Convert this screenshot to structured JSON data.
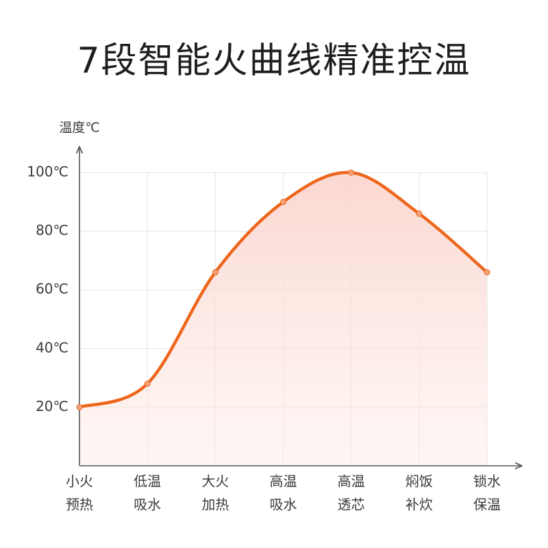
{
  "chart_data": {
    "type": "line",
    "title": "7段智能火曲线精准控温",
    "y_label": "温度℃",
    "categories": [
      [
        "小火",
        "预热"
      ],
      [
        "低温",
        "吸水"
      ],
      [
        "大火",
        "加热"
      ],
      [
        "高温",
        "吸水"
      ],
      [
        "高温",
        "透芯"
      ],
      [
        "焖饭",
        "补炊"
      ],
      [
        "锁水",
        "保温"
      ]
    ],
    "values": [
      20,
      28,
      66,
      90,
      100,
      86,
      66
    ],
    "color": "#ee661c",
    "ylim": [
      0,
      100
    ],
    "yticks": [
      {
        "value": 20,
        "label": "20℃"
      },
      {
        "value": 40,
        "label": "40℃"
      },
      {
        "value": 60,
        "label": "60℃"
      },
      {
        "value": 80,
        "label": "80℃"
      },
      {
        "value": 100,
        "label": "100℃"
      }
    ],
    "grid": true
  }
}
